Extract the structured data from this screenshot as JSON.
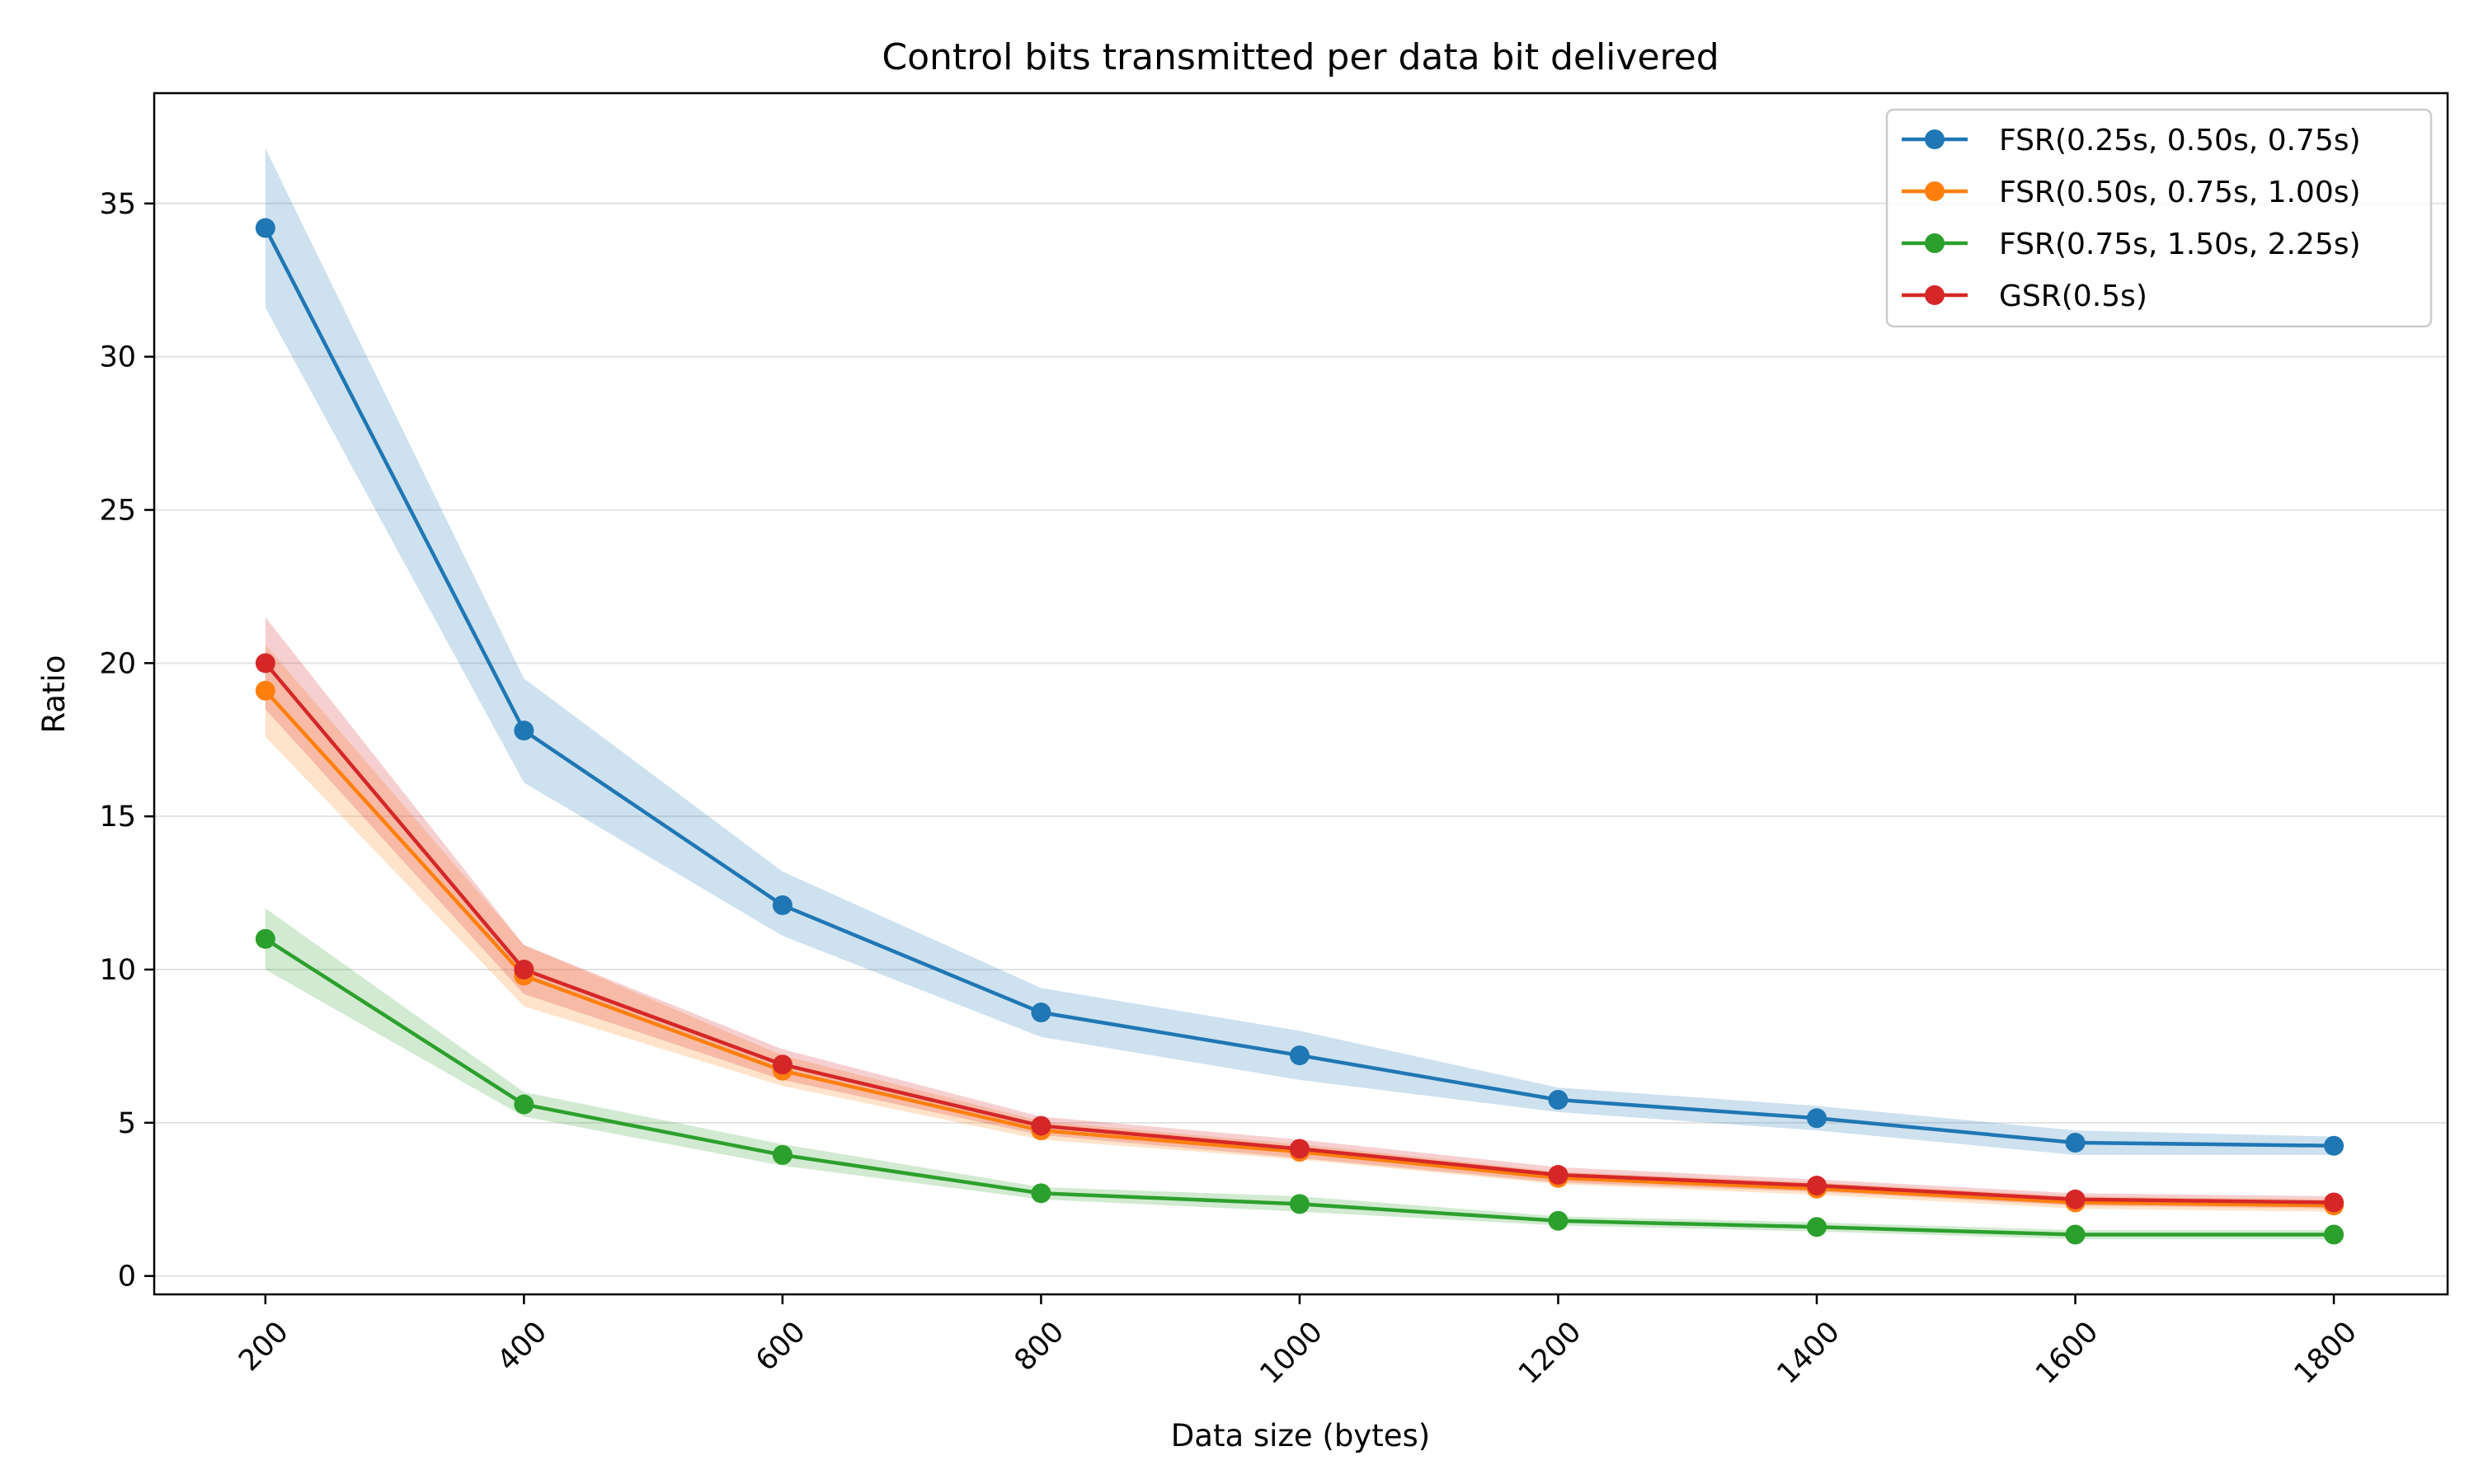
{
  "chart_data": {
    "type": "line",
    "title": "Control bits transmitted per data bit delivered",
    "xlabel": "Data size (bytes)",
    "ylabel": "Ratio",
    "x": [
      200,
      400,
      600,
      800,
      1000,
      1200,
      1400,
      1600,
      1800
    ],
    "xlim": [
      114,
      1888
    ],
    "ylim": [
      -0.6,
      38.6
    ],
    "xticks": [
      200,
      400,
      600,
      800,
      1000,
      1200,
      1400,
      1600,
      1800
    ],
    "yticks": [
      0,
      5,
      10,
      15,
      20,
      25,
      30,
      35
    ],
    "xtick_rotation": 45,
    "grid": "horizontal",
    "legend_position": "top-right",
    "series": [
      {
        "name": "FSR(0.25s, 0.50s, 0.75s)",
        "color": "#1f77b4",
        "values": [
          34.2,
          17.8,
          12.1,
          8.6,
          7.2,
          5.75,
          5.15,
          4.35,
          4.25
        ],
        "lower": [
          31.6,
          16.1,
          11.1,
          7.8,
          6.4,
          5.35,
          4.75,
          3.95,
          3.95
        ],
        "upper": [
          36.8,
          19.5,
          13.2,
          9.4,
          8.0,
          6.15,
          5.55,
          4.75,
          4.55
        ]
      },
      {
        "name": "FSR(0.50s, 0.75s, 1.00s)",
        "color": "#ff7f0e",
        "values": [
          19.1,
          9.8,
          6.7,
          4.75,
          4.05,
          3.2,
          2.85,
          2.4,
          2.3
        ],
        "lower": [
          17.6,
          8.8,
          6.2,
          4.45,
          3.8,
          3.0,
          2.65,
          2.2,
          2.1
        ],
        "upper": [
          20.6,
          10.8,
          7.2,
          5.05,
          4.3,
          3.4,
          3.05,
          2.6,
          2.5
        ]
      },
      {
        "name": "FSR(0.75s, 1.50s, 2.25s)",
        "color": "#2ca02c",
        "values": [
          11.0,
          5.6,
          3.95,
          2.7,
          2.35,
          1.8,
          1.6,
          1.35,
          1.35
        ],
        "lower": [
          10.0,
          5.2,
          3.6,
          2.5,
          2.1,
          1.65,
          1.45,
          1.2,
          1.2
        ],
        "upper": [
          12.0,
          6.0,
          4.3,
          2.9,
          2.6,
          1.95,
          1.75,
          1.5,
          1.5
        ]
      },
      {
        "name": "GSR(0.5s)",
        "color": "#d62728",
        "values": [
          20.0,
          10.0,
          6.9,
          4.9,
          4.15,
          3.3,
          2.95,
          2.5,
          2.4
        ],
        "lower": [
          18.5,
          9.2,
          6.4,
          4.6,
          3.85,
          3.05,
          2.75,
          2.3,
          2.2
        ],
        "upper": [
          21.5,
          10.8,
          7.4,
          5.2,
          4.45,
          3.55,
          3.15,
          2.7,
          2.6
        ]
      }
    ]
  }
}
